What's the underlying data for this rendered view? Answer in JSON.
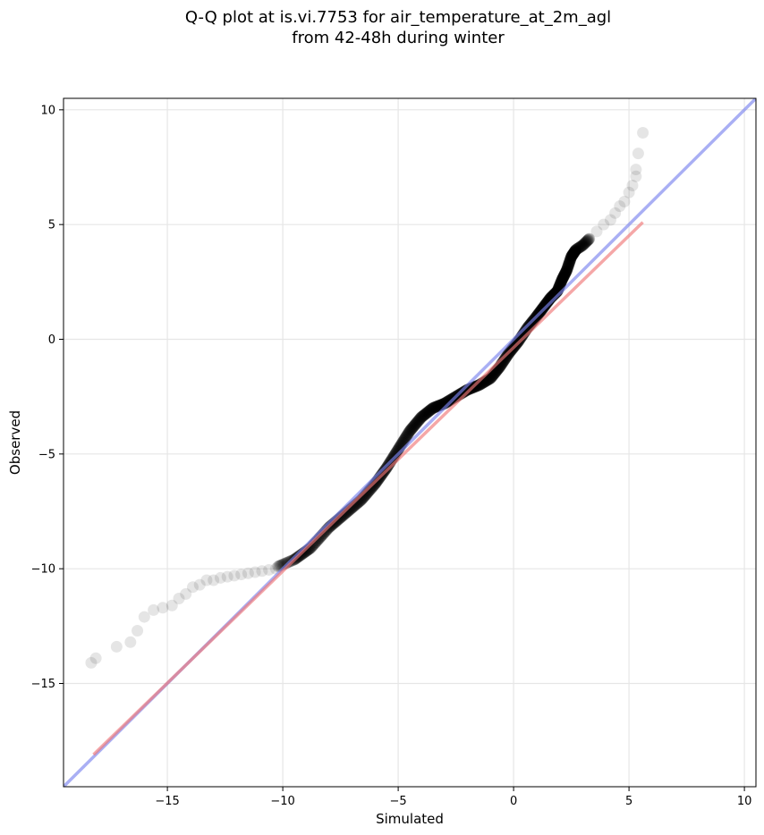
{
  "chart_data": {
    "type": "scatter",
    "title_line1": "Q-Q plot at is.vi.7753 for air_temperature_at_2m_agl",
    "title_line2": "from 42-48h during winter",
    "xlabel": "Simulated",
    "ylabel": "Observed",
    "xlim": [
      -19.5,
      10.5
    ],
    "ylim": [
      -19.5,
      10.5
    ],
    "xticks": [
      -15,
      -10,
      -5,
      0,
      5,
      10
    ],
    "yticks": [
      -15,
      -10,
      -5,
      0,
      5,
      10
    ],
    "xtick_labels": [
      "−15",
      "−10",
      "−5",
      "0",
      "5",
      "10"
    ],
    "ytick_labels": [
      "−15",
      "−10",
      "−5",
      "0",
      "5",
      "10"
    ],
    "grid": true,
    "colors": {
      "points": "#000000",
      "identity_line": "#7b84ee",
      "fit_line": "#f07878"
    },
    "identity_line": {
      "x": [
        -19.5,
        10.5
      ],
      "y": [
        -19.5,
        10.5
      ]
    },
    "fit_line": {
      "x": [
        -18.2,
        5.6
      ],
      "y": [
        -18.1,
        5.1
      ]
    },
    "points_sparse": {
      "x": [
        -18.3,
        -18.1,
        -17.2,
        -16.6,
        -16.3,
        -16.0,
        -15.6,
        -15.2,
        -14.8,
        -14.5,
        -14.2,
        -13.9,
        -13.6,
        -13.3,
        -13.0,
        -12.7,
        -12.4,
        -12.1,
        -11.8,
        -11.5,
        -11.2,
        -10.9,
        -10.6,
        -10.3,
        3.6,
        3.9,
        4.2,
        4.4,
        4.6,
        4.8,
        5.0,
        5.15,
        5.3,
        5.3,
        5.4,
        5.6
      ],
      "y": [
        -14.1,
        -13.9,
        -13.4,
        -13.2,
        -12.7,
        -12.1,
        -11.8,
        -11.7,
        -11.6,
        -11.3,
        -11.1,
        -10.8,
        -10.7,
        -10.5,
        -10.5,
        -10.4,
        -10.35,
        -10.3,
        -10.25,
        -10.2,
        -10.15,
        -10.1,
        -10.05,
        -10.0,
        4.7,
        5.0,
        5.2,
        5.5,
        5.8,
        6.0,
        6.4,
        6.7,
        7.1,
        7.4,
        8.1,
        9.0
      ]
    },
    "points_dense_curve": {
      "x": [
        -10.2,
        -9.5,
        -8.8,
        -8.0,
        -7.3,
        -6.6,
        -6.0,
        -5.5,
        -5.0,
        -4.5,
        -4.0,
        -3.5,
        -3.0,
        -2.5,
        -2.0,
        -1.5,
        -1.0,
        -0.6,
        -0.2,
        0.2,
        0.6,
        1.0,
        1.3,
        1.6,
        1.9,
        2.1,
        2.3,
        2.5,
        2.7,
        3.0,
        3.3
      ],
      "y": [
        -9.9,
        -9.6,
        -9.1,
        -8.2,
        -7.6,
        -7.0,
        -6.3,
        -5.6,
        -4.8,
        -4.0,
        -3.4,
        -3.0,
        -2.8,
        -2.5,
        -2.2,
        -2.0,
        -1.7,
        -1.2,
        -0.6,
        -0.1,
        0.5,
        1.0,
        1.4,
        1.8,
        2.1,
        2.6,
        3.0,
        3.6,
        3.9,
        4.1,
        4.4
      ]
    }
  }
}
